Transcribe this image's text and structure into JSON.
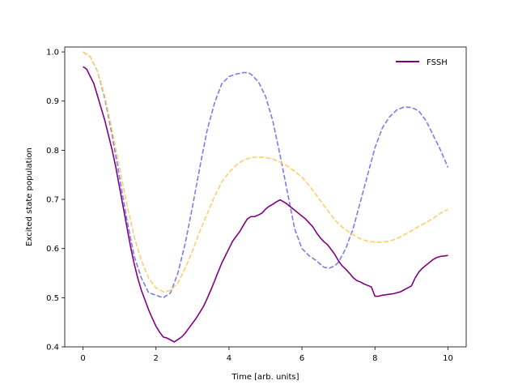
{
  "chart_data": {
    "type": "line",
    "title": "",
    "xlabel": "Time [arb. units]",
    "ylabel": "Excited state population",
    "xlim": [
      -0.5,
      10.5
    ],
    "ylim": [
      0.4,
      1.01
    ],
    "xticks": [
      0,
      2,
      4,
      6,
      8,
      10
    ],
    "yticks": [
      0.4,
      0.5,
      0.6,
      0.7,
      0.8,
      0.9,
      1.0
    ],
    "xtick_labels": [
      "0",
      "2",
      "4",
      "6",
      "8",
      "10"
    ],
    "ytick_labels": [
      "0.4",
      "0.5",
      "0.6",
      "0.7",
      "0.8",
      "0.9",
      "1.0"
    ],
    "grid": false,
    "legend": {
      "position": "top-right",
      "entries": [
        "FSSH"
      ]
    },
    "series": [
      {
        "name": "FSSH",
        "color": "#800080",
        "style": "solid",
        "in_legend": true,
        "x": [
          0.0,
          0.1,
          0.2,
          0.3,
          0.4,
          0.5,
          0.6,
          0.7,
          0.8,
          0.9,
          1.0,
          1.1,
          1.2,
          1.3,
          1.4,
          1.5,
          1.6,
          1.7,
          1.8,
          1.9,
          2.0,
          2.1,
          2.2,
          2.3,
          2.4,
          2.5,
          2.6,
          2.7,
          2.8,
          2.9,
          3.0,
          3.1,
          3.2,
          3.3,
          3.4,
          3.5,
          3.6,
          3.7,
          3.8,
          3.9,
          4.0,
          4.1,
          4.2,
          4.3,
          4.4,
          4.5,
          4.6,
          4.7,
          4.8,
          4.9,
          5.0,
          5.1,
          5.2,
          5.3,
          5.4,
          5.5,
          5.6,
          5.7,
          5.8,
          5.9,
          6.0,
          6.1,
          6.2,
          6.3,
          6.4,
          6.5,
          6.6,
          6.7,
          6.8,
          6.9,
          7.0,
          7.1,
          7.2,
          7.3,
          7.4,
          7.5,
          7.6,
          7.7,
          7.8,
          7.9,
          8.0,
          8.1,
          8.2,
          8.3,
          8.4,
          8.5,
          8.6,
          8.7,
          8.8,
          8.9,
          9.0,
          9.1,
          9.2,
          9.3,
          9.4,
          9.5,
          9.6,
          9.7,
          9.8,
          9.9,
          10.0
        ],
        "y": [
          0.97,
          0.965,
          0.95,
          0.935,
          0.91,
          0.885,
          0.86,
          0.83,
          0.8,
          0.765,
          0.725,
          0.685,
          0.645,
          0.605,
          0.57,
          0.54,
          0.515,
          0.495,
          0.475,
          0.458,
          0.442,
          0.43,
          0.42,
          0.418,
          0.414,
          0.41,
          0.415,
          0.42,
          0.428,
          0.438,
          0.448,
          0.458,
          0.47,
          0.482,
          0.498,
          0.515,
          0.533,
          0.552,
          0.57,
          0.585,
          0.6,
          0.615,
          0.625,
          0.635,
          0.648,
          0.66,
          0.665,
          0.665,
          0.668,
          0.672,
          0.68,
          0.686,
          0.69,
          0.695,
          0.699,
          0.695,
          0.69,
          0.684,
          0.678,
          0.672,
          0.666,
          0.66,
          0.652,
          0.644,
          0.632,
          0.622,
          0.614,
          0.608,
          0.598,
          0.588,
          0.575,
          0.565,
          0.558,
          0.55,
          0.541,
          0.535,
          0.532,
          0.528,
          0.525,
          0.522,
          0.503,
          0.503,
          0.505,
          0.506,
          0.507,
          0.508,
          0.51,
          0.512,
          0.516,
          0.52,
          0.524,
          0.54,
          0.552,
          0.56,
          0.566,
          0.572,
          0.578,
          0.582,
          0.584,
          0.585,
          0.586
        ]
      },
      {
        "color": "#7b7bef",
        "style": "dashed",
        "in_legend": false,
        "x": [
          0.0,
          0.2,
          0.4,
          0.6,
          0.8,
          1.0,
          1.2,
          1.4,
          1.6,
          1.8,
          2.0,
          2.2,
          2.4,
          2.6,
          2.8,
          3.0,
          3.2,
          3.4,
          3.6,
          3.8,
          4.0,
          4.2,
          4.4,
          4.5,
          4.6,
          4.8,
          5.0,
          5.2,
          5.4,
          5.6,
          5.8,
          6.0,
          6.2,
          6.4,
          6.6,
          6.75,
          6.9,
          7.0,
          7.2,
          7.4,
          7.6,
          7.8,
          8.0,
          8.2,
          8.4,
          8.6,
          8.8,
          9.0,
          9.2,
          9.4,
          9.6,
          9.8,
          10.0
        ],
        "y": [
          1.0,
          0.99,
          0.96,
          0.905,
          0.83,
          0.745,
          0.66,
          0.585,
          0.54,
          0.51,
          0.505,
          0.5,
          0.51,
          0.55,
          0.61,
          0.685,
          0.765,
          0.84,
          0.895,
          0.935,
          0.95,
          0.955,
          0.958,
          0.958,
          0.955,
          0.94,
          0.91,
          0.86,
          0.79,
          0.715,
          0.64,
          0.6,
          0.585,
          0.575,
          0.562,
          0.56,
          0.565,
          0.572,
          0.6,
          0.64,
          0.695,
          0.75,
          0.805,
          0.845,
          0.868,
          0.882,
          0.888,
          0.887,
          0.88,
          0.86,
          0.83,
          0.8,
          0.765
        ]
      },
      {
        "color": "#ffcd6c",
        "style": "dashed",
        "in_legend": false,
        "x": [
          0.0,
          0.2,
          0.4,
          0.6,
          0.8,
          1.0,
          1.2,
          1.4,
          1.6,
          1.8,
          2.0,
          2.2,
          2.4,
          2.6,
          2.8,
          3.0,
          3.2,
          3.4,
          3.6,
          3.8,
          4.0,
          4.2,
          4.4,
          4.6,
          4.8,
          5.0,
          5.2,
          5.4,
          5.6,
          5.8,
          6.0,
          6.2,
          6.4,
          6.6,
          6.8,
          7.0,
          7.2,
          7.4,
          7.6,
          7.8,
          8.0,
          8.2,
          8.4,
          8.6,
          8.8,
          9.0,
          9.2,
          9.4,
          9.6,
          9.8,
          10.0
        ],
        "y": [
          1.0,
          0.99,
          0.96,
          0.91,
          0.84,
          0.765,
          0.69,
          0.625,
          0.575,
          0.54,
          0.52,
          0.512,
          0.515,
          0.53,
          0.56,
          0.595,
          0.635,
          0.67,
          0.705,
          0.735,
          0.755,
          0.77,
          0.78,
          0.785,
          0.786,
          0.785,
          0.782,
          0.776,
          0.768,
          0.757,
          0.745,
          0.728,
          0.708,
          0.688,
          0.668,
          0.65,
          0.638,
          0.628,
          0.62,
          0.615,
          0.613,
          0.613,
          0.615,
          0.62,
          0.628,
          0.636,
          0.645,
          0.653,
          0.662,
          0.672,
          0.68
        ]
      }
    ]
  }
}
